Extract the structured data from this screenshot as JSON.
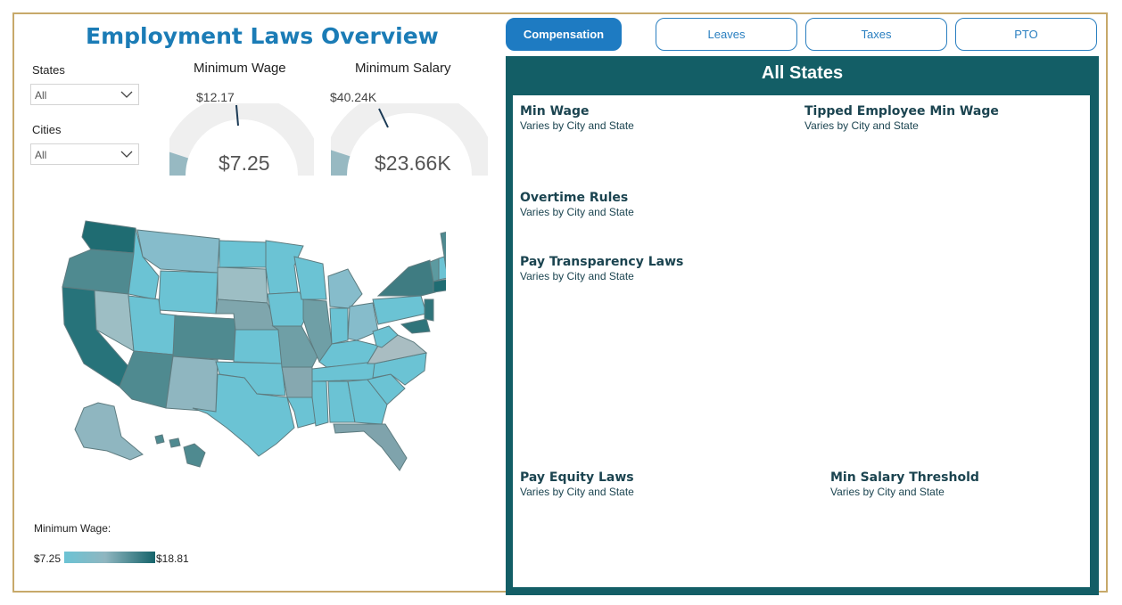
{
  "header": {
    "title": "Employment Laws Overview"
  },
  "filters": {
    "states": {
      "label": "States",
      "value": "All"
    },
    "cities": {
      "label": "Cities",
      "value": "All"
    }
  },
  "gauges": {
    "min_wage": {
      "title": "Minimum Wage",
      "max_label": "$12.17",
      "value_label": "$7.25",
      "fill_fraction": 0.1
    },
    "min_salary": {
      "title": "Minimum Salary",
      "max_label": "$40.24K",
      "value_label": "$23.66K",
      "fill_fraction": 0.1
    }
  },
  "legend": {
    "title": "Minimum Wage:",
    "min": "$7.25",
    "max": "$18.81"
  },
  "tabs": [
    {
      "label": "Compensation",
      "active": true
    },
    {
      "label": "Leaves",
      "active": false
    },
    {
      "label": "Taxes",
      "active": false
    },
    {
      "label": "PTO",
      "active": false
    }
  ],
  "panel": {
    "title": "All States",
    "laws": {
      "min_wage": {
        "heading": "Min Wage",
        "detail": "Varies by City and State"
      },
      "tipped_min_wage": {
        "heading": "Tipped Employee Min Wage",
        "detail": "Varies by City and State"
      },
      "overtime_rules": {
        "heading": "Overtime Rules",
        "detail": "Varies by City and State"
      },
      "pay_transparency": {
        "heading": "Pay Transparency Laws",
        "detail": "Varies by City and State"
      },
      "pay_equity": {
        "heading": "Pay Equity Laws",
        "detail": "Varies by City and State"
      },
      "min_salary_threshold": {
        "heading": "Min Salary Threshold",
        "detail": "Varies by City and State"
      }
    }
  },
  "colors": {
    "accent": "#1e7bc2",
    "panel": "#135e66",
    "map_low": "#6bc3d4",
    "map_mid": "#8fb6c0",
    "map_high": "#15636a"
  }
}
